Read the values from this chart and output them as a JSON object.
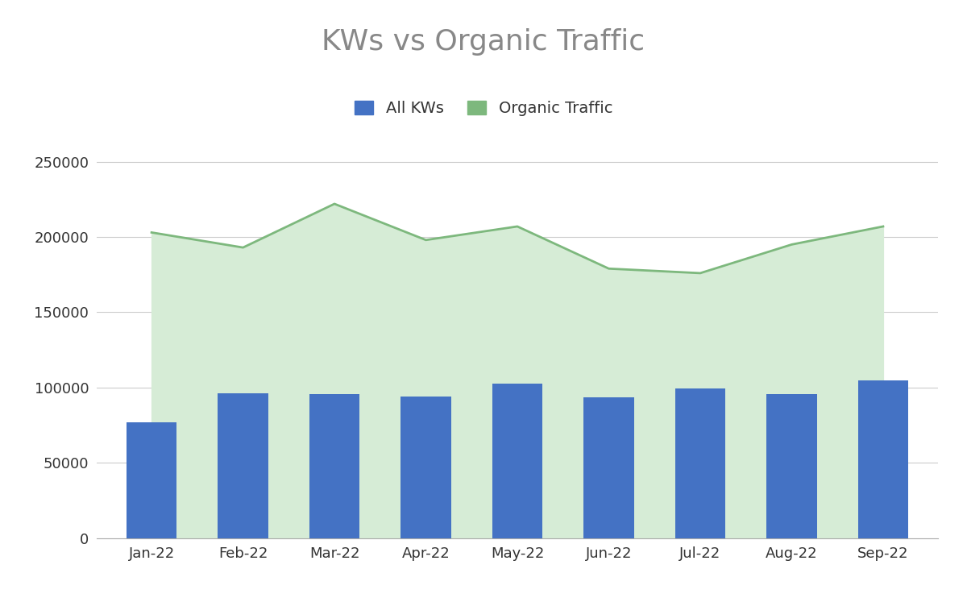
{
  "title": "KWs vs Organic Traffic",
  "title_color": "#888888",
  "title_fontsize": 26,
  "background_color": "#ffffff",
  "months": [
    "Jan-22",
    "Feb-22",
    "Mar-22",
    "Apr-22",
    "May-22",
    "Jun-22",
    "Jul-22",
    "Aug-22",
    "Sep-22"
  ],
  "bar_values": [
    77000,
    96000,
    95500,
    94000,
    102500,
    93500,
    99500,
    95500,
    105000
  ],
  "bar_color": "#4472C4",
  "line_values": [
    203000,
    193000,
    222000,
    198000,
    207000,
    179000,
    176000,
    195000,
    207000
  ],
  "line_color": "#7DB87D",
  "fill_color": "#D6ECD6",
  "ylim": [
    0,
    270000
  ],
  "yticks": [
    0,
    50000,
    100000,
    150000,
    200000,
    250000
  ],
  "grid_color": "#cccccc",
  "legend_labels": [
    "All KWs",
    "Organic Traffic"
  ],
  "tick_label_fontsize": 13,
  "axis_label_color": "#333333",
  "legend_fontsize": 14,
  "bar_width": 0.55
}
